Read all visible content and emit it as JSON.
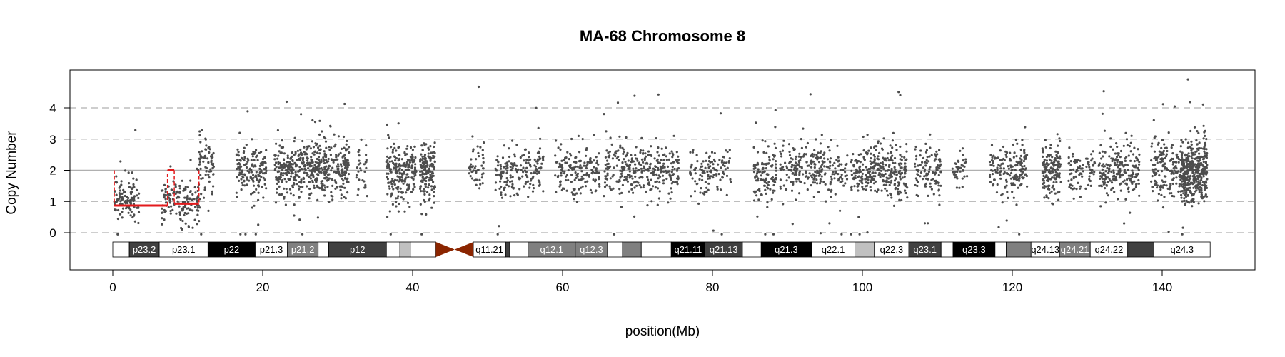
{
  "chart_data": {
    "type": "scatter",
    "title": "MA-68  Chromosome 8",
    "xlabel": "position(Mb)",
    "ylabel": "Copy Number",
    "xlim": [
      0,
      146
    ],
    "ylim": [
      0,
      4
    ],
    "x_ticks": [
      0,
      20,
      40,
      60,
      80,
      100,
      120,
      140
    ],
    "y_ticks": [
      0,
      1,
      2,
      3,
      4
    ],
    "grid": "horizontal dashed at y ticks, solid line at 2",
    "point_color": "#4d4d4d",
    "segment_color": "#e31a1c",
    "segments": [
      {
        "start": 0.2,
        "end": 7.3,
        "value": 0.87
      },
      {
        "start": 7.3,
        "end": 8.2,
        "value": 2.0
      },
      {
        "start": 8.2,
        "end": 11.5,
        "value": 0.93
      }
    ],
    "probe_clusters": [
      {
        "start": 0.2,
        "end": 3.5,
        "mean": 1.1,
        "sd": 0.35,
        "n": 120
      },
      {
        "start": 6.5,
        "end": 11.8,
        "mean": 1.0,
        "sd": 0.35,
        "n": 150
      },
      {
        "start": 11.5,
        "end": 13.5,
        "mean": 2.2,
        "sd": 0.45,
        "n": 70
      },
      {
        "start": 16.5,
        "end": 20.5,
        "mean": 2.0,
        "sd": 0.4,
        "n": 160
      },
      {
        "start": 21.5,
        "end": 31.5,
        "mean": 2.0,
        "sd": 0.45,
        "n": 520
      },
      {
        "start": 32.5,
        "end": 34.0,
        "mean": 2.0,
        "sd": 0.4,
        "n": 30
      },
      {
        "start": 36.5,
        "end": 40.5,
        "mean": 2.0,
        "sd": 0.45,
        "n": 220
      },
      {
        "start": 41.0,
        "end": 43.0,
        "mean": 2.0,
        "sd": 0.45,
        "n": 160
      },
      {
        "start": 47.5,
        "end": 49.5,
        "mean": 2.0,
        "sd": 0.4,
        "n": 50
      },
      {
        "start": 51.0,
        "end": 57.5,
        "mean": 2.0,
        "sd": 0.4,
        "n": 180
      },
      {
        "start": 59.0,
        "end": 65.0,
        "mean": 2.0,
        "sd": 0.4,
        "n": 160
      },
      {
        "start": 65.5,
        "end": 75.5,
        "mean": 2.0,
        "sd": 0.42,
        "n": 320
      },
      {
        "start": 77.0,
        "end": 82.5,
        "mean": 2.0,
        "sd": 0.38,
        "n": 120
      },
      {
        "start": 85.5,
        "end": 88.5,
        "mean": 1.9,
        "sd": 0.45,
        "n": 120
      },
      {
        "start": 89.0,
        "end": 98.0,
        "mean": 2.0,
        "sd": 0.42,
        "n": 260
      },
      {
        "start": 98.5,
        "end": 106.0,
        "mean": 2.0,
        "sd": 0.42,
        "n": 320
      },
      {
        "start": 107.0,
        "end": 110.5,
        "mean": 2.0,
        "sd": 0.38,
        "n": 110
      },
      {
        "start": 112.0,
        "end": 114.0,
        "mean": 2.0,
        "sd": 0.3,
        "n": 40
      },
      {
        "start": 117.0,
        "end": 122.0,
        "mean": 2.0,
        "sd": 0.38,
        "n": 170
      },
      {
        "start": 124.0,
        "end": 126.5,
        "mean": 2.0,
        "sd": 0.42,
        "n": 160
      },
      {
        "start": 127.5,
        "end": 131.0,
        "mean": 2.0,
        "sd": 0.4,
        "n": 80
      },
      {
        "start": 131.5,
        "end": 137.0,
        "mean": 2.0,
        "sd": 0.45,
        "n": 220
      },
      {
        "start": 138.5,
        "end": 142.5,
        "mean": 2.0,
        "sd": 0.45,
        "n": 160
      },
      {
        "start": 142.5,
        "end": 146.0,
        "mean": 2.0,
        "sd": 0.5,
        "n": 420
      }
    ],
    "ideogram": [
      {
        "label": "",
        "start": 0,
        "end": 2.2,
        "fill": "#ffffff",
        "text": "#000000"
      },
      {
        "label": "p23.2",
        "start": 2.2,
        "end": 6.2,
        "fill": "#404040",
        "text": "#ffffff"
      },
      {
        "label": "p23.1",
        "start": 6.2,
        "end": 12.7,
        "fill": "#ffffff",
        "text": "#000000"
      },
      {
        "label": "p22",
        "start": 12.7,
        "end": 19.0,
        "fill": "#000000",
        "text": "#ffffff"
      },
      {
        "label": "p21.3",
        "start": 19.0,
        "end": 23.3,
        "fill": "#ffffff",
        "text": "#000000"
      },
      {
        "label": "p21.2",
        "start": 23.3,
        "end": 27.4,
        "fill": "#808080",
        "text": "#ffffff"
      },
      {
        "label": "",
        "start": 27.4,
        "end": 28.8,
        "fill": "#ffffff",
        "text": "#000000"
      },
      {
        "label": "p12",
        "start": 28.8,
        "end": 36.5,
        "fill": "#404040",
        "text": "#ffffff"
      },
      {
        "label": "",
        "start": 36.5,
        "end": 38.3,
        "fill": "#ffffff",
        "text": "#000000"
      },
      {
        "label": "",
        "start": 38.3,
        "end": 39.7,
        "fill": "#c0c0c0",
        "text": "#000000"
      },
      {
        "label": "",
        "start": 39.7,
        "end": 43.1,
        "fill": "#ffffff",
        "text": "#000000"
      },
      {
        "label": "",
        "start": 48.1,
        "end": 52.4,
        "fill": "#ffffff",
        "text": "#000000"
      },
      {
        "label": "q11.21",
        "start": 48.1,
        "end": 52.4,
        "fill": "#ffffff",
        "text": "#000000",
        "lineOnly": true
      },
      {
        "label": "",
        "start": 52.4,
        "end": 52.9,
        "fill": "#404040",
        "text": "#ffffff"
      },
      {
        "label": "",
        "start": 52.9,
        "end": 55.4,
        "fill": "#ffffff",
        "text": "#000000"
      },
      {
        "label": "q12.1",
        "start": 55.4,
        "end": 61.7,
        "fill": "#808080",
        "text": "#ffffff"
      },
      {
        "label": "q12.3",
        "start": 61.7,
        "end": 66.0,
        "fill": "#808080",
        "text": "#ffffff"
      },
      {
        "label": "",
        "start": 66.0,
        "end": 68.0,
        "fill": "#ffffff",
        "text": "#000000"
      },
      {
        "label": "",
        "start": 68.0,
        "end": 70.5,
        "fill": "#808080",
        "text": "#ffffff"
      },
      {
        "label": "",
        "start": 70.5,
        "end": 74.5,
        "fill": "#ffffff",
        "text": "#000000"
      },
      {
        "label": "q21.11",
        "start": 74.5,
        "end": 79.0,
        "fill": "#000000",
        "text": "#ffffff"
      },
      {
        "label": "q21.13",
        "start": 79.0,
        "end": 84.0,
        "fill": "#404040",
        "text": "#ffffff"
      },
      {
        "label": "",
        "start": 84.0,
        "end": 86.5,
        "fill": "#ffffff",
        "text": "#000000"
      },
      {
        "label": "q21.3",
        "start": 86.5,
        "end": 93.2,
        "fill": "#000000",
        "text": "#ffffff"
      },
      {
        "label": "q22.1",
        "start": 93.2,
        "end": 99.0,
        "fill": "#ffffff",
        "text": "#000000"
      },
      {
        "label": "",
        "start": 99.0,
        "end": 101.6,
        "fill": "#c0c0c0",
        "text": "#000000"
      },
      {
        "label": "q22.3",
        "start": 101.6,
        "end": 106.2,
        "fill": "#ffffff",
        "text": "#000000"
      },
      {
        "label": "q23.1",
        "start": 106.2,
        "end": 110.5,
        "fill": "#404040",
        "text": "#ffffff"
      },
      {
        "label": "",
        "start": 110.5,
        "end": 112.1,
        "fill": "#ffffff",
        "text": "#000000"
      },
      {
        "label": "q23.3",
        "start": 112.1,
        "end": 117.7,
        "fill": "#000000",
        "text": "#ffffff"
      },
      {
        "label": "",
        "start": 117.7,
        "end": 119.2,
        "fill": "#ffffff",
        "text": "#000000"
      },
      {
        "label": "",
        "start": 119.2,
        "end": 122.5,
        "fill": "#808080",
        "text": "#ffffff"
      },
      {
        "label": "q24.13",
        "start": 122.5,
        "end": 126.3,
        "fill": "#ffffff",
        "text": "#000000"
      },
      {
        "label": "q24.21",
        "start": 126.3,
        "end": 130.4,
        "fill": "#808080",
        "text": "#ffffff"
      },
      {
        "label": "q24.22",
        "start": 130.4,
        "end": 135.4,
        "fill": "#ffffff",
        "text": "#000000"
      },
      {
        "label": "",
        "start": 135.4,
        "end": 138.9,
        "fill": "#404040",
        "text": "#ffffff"
      },
      {
        "label": "q24.3",
        "start": 138.9,
        "end": 146.4,
        "fill": "#ffffff",
        "text": "#000000"
      }
    ],
    "centromere": {
      "start": 43.1,
      "end": 48.1,
      "color": "#8b2500"
    }
  }
}
